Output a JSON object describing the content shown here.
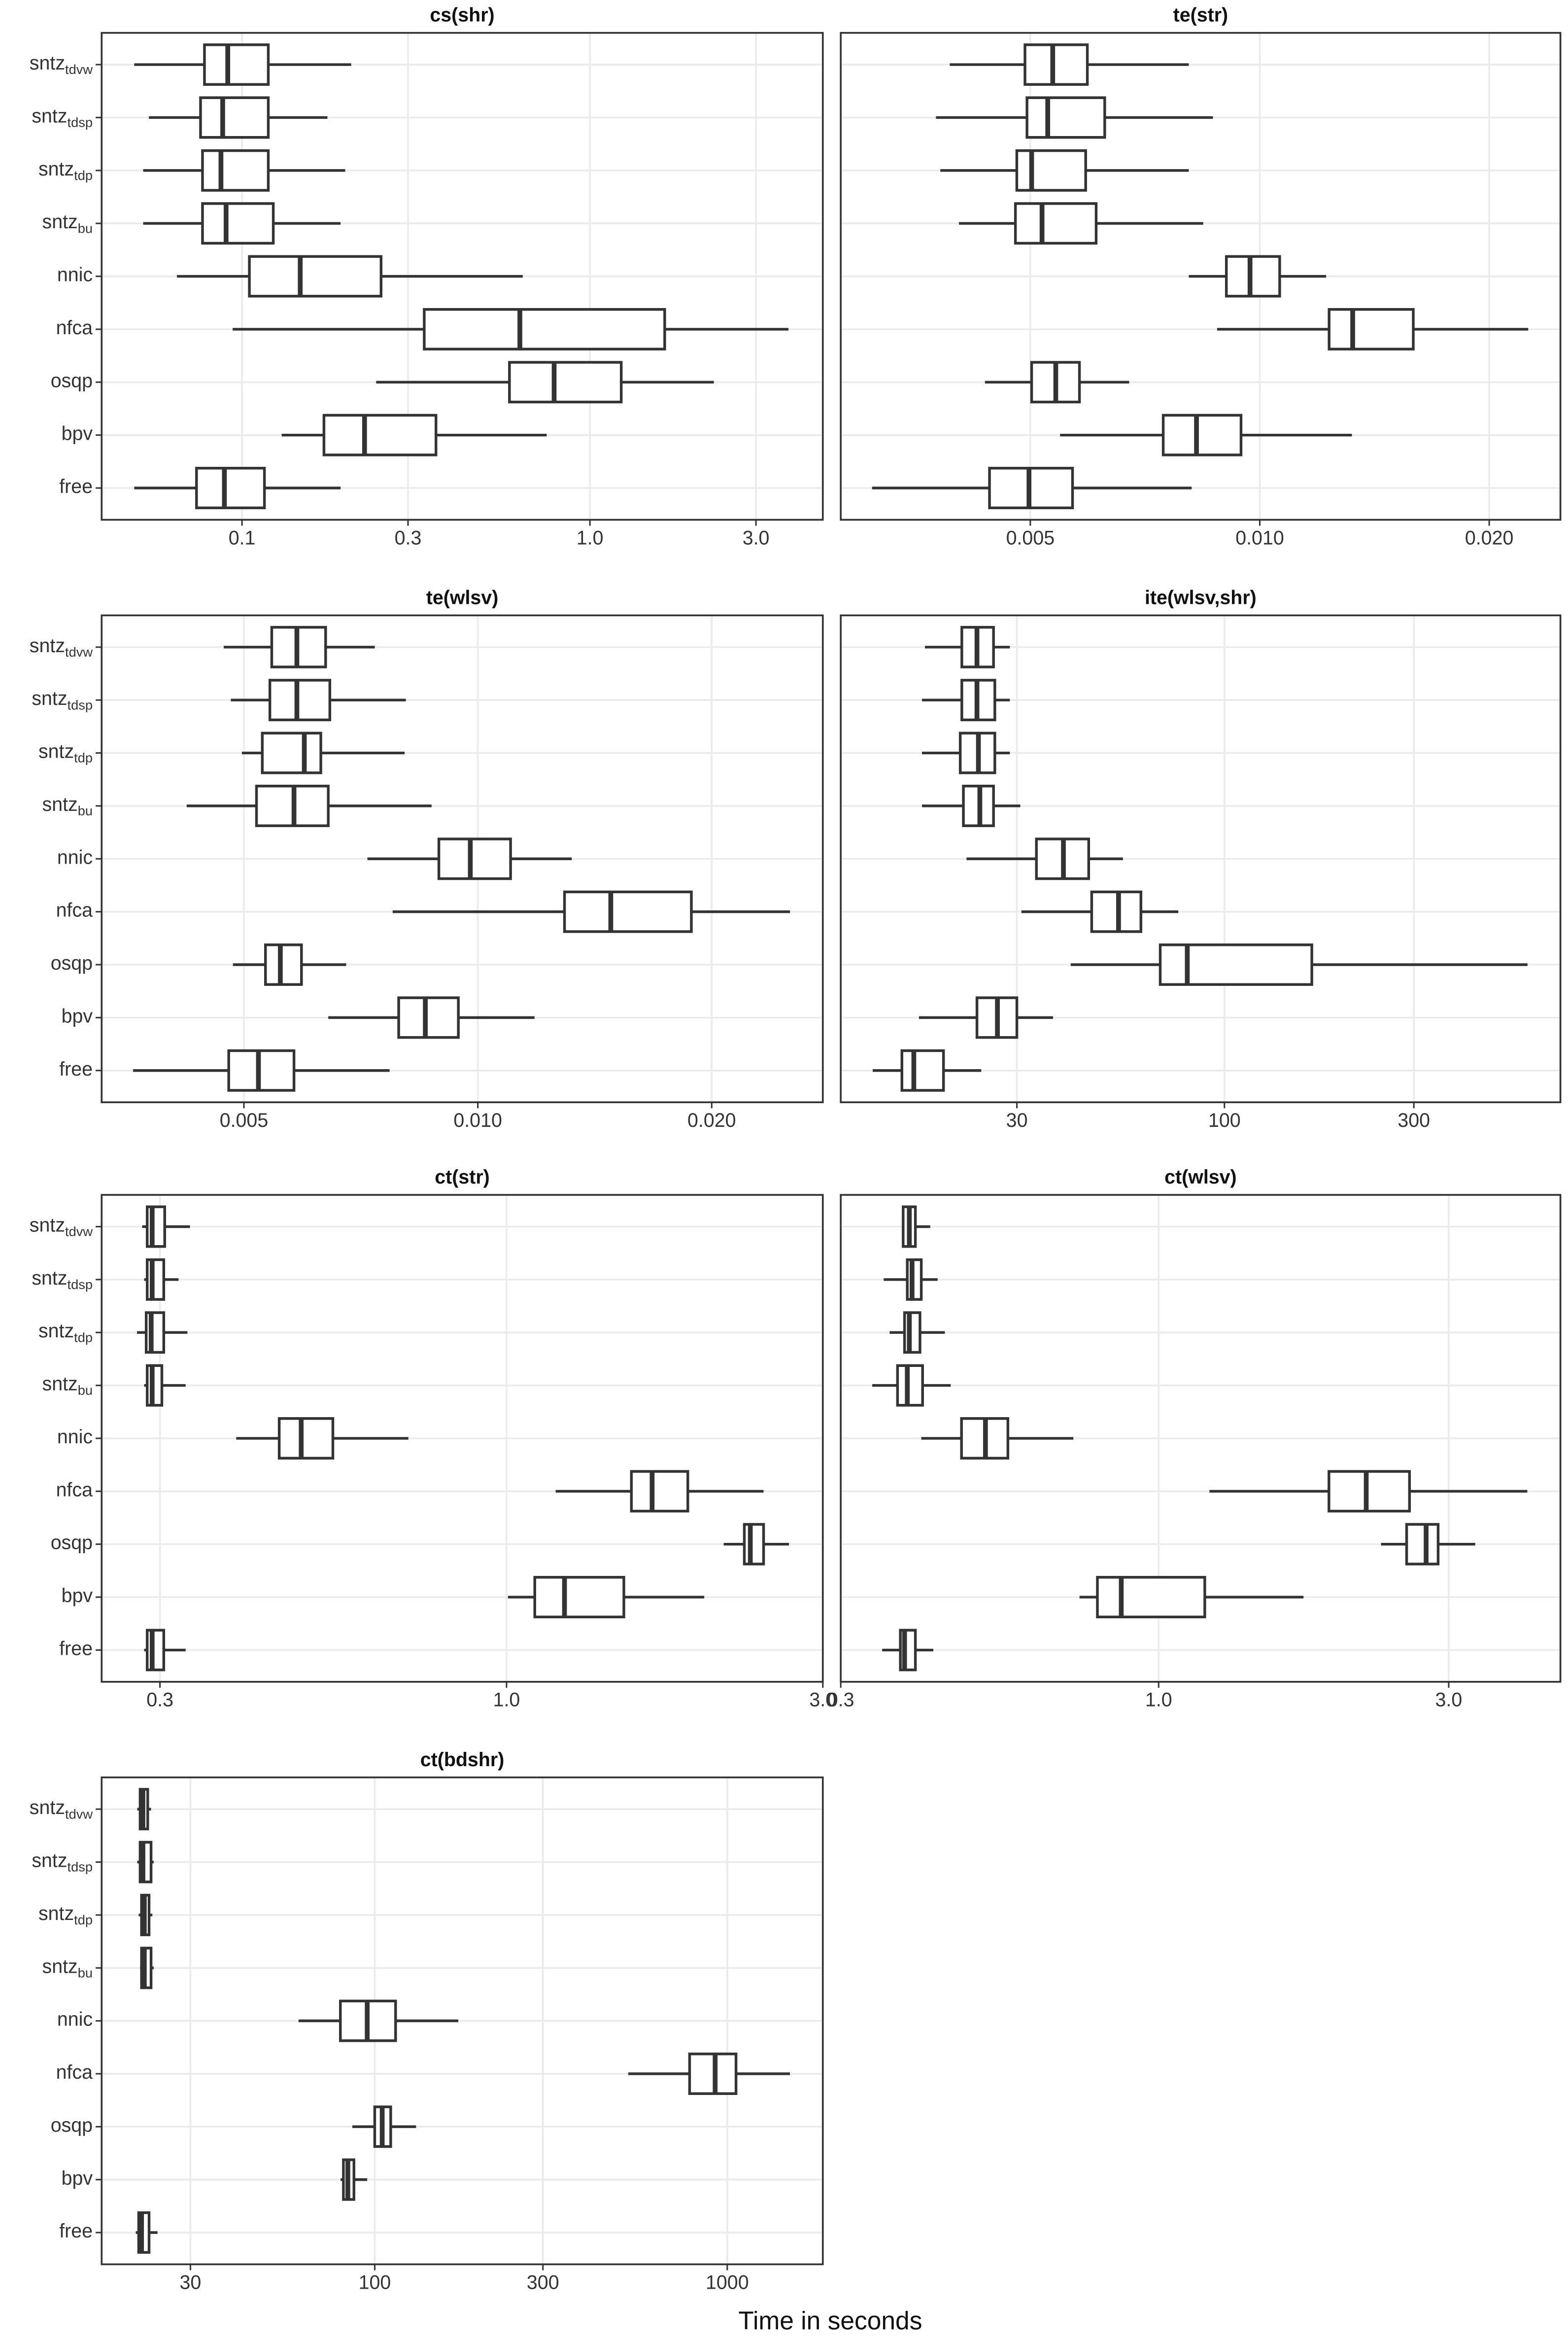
{
  "xlabel": "Time in seconds",
  "chart_data": [
    {
      "type": "box",
      "title": "cs(shr)",
      "categories": [
        {
          "text": "sntz",
          "sub": "tdvw"
        },
        {
          "text": "sntz",
          "sub": "tdsp"
        },
        {
          "text": "sntz",
          "sub": "tdp"
        },
        {
          "text": "sntz",
          "sub": "bu"
        },
        {
          "text": "nnic"
        },
        {
          "text": "nfca"
        },
        {
          "text": "osqp"
        },
        {
          "text": "bpv"
        },
        {
          "text": "free"
        }
      ],
      "values": [
        [
          0.049,
          0.078,
          0.091,
          0.119,
          0.206
        ],
        [
          0.054,
          0.076,
          0.088,
          0.119,
          0.176
        ],
        [
          0.052,
          0.077,
          0.087,
          0.119,
          0.198
        ],
        [
          0.052,
          0.077,
          0.09,
          0.123,
          0.192
        ],
        [
          0.065,
          0.105,
          0.147,
          0.251,
          0.641
        ],
        [
          0.094,
          0.334,
          0.629,
          1.64,
          3.72
        ],
        [
          0.243,
          0.587,
          0.789,
          1.23,
          2.27
        ],
        [
          0.13,
          0.172,
          0.225,
          0.361,
          0.751
        ],
        [
          0.049,
          0.074,
          0.089,
          0.116,
          0.192
        ]
      ],
      "xscale": "log",
      "xlim": [
        0.0395,
        4.67
      ],
      "xticks": [
        0.1,
        0.3,
        {
          "value": 1,
          "label": "1.0"
        },
        {
          "value": 3,
          "label": "3.0"
        }
      ],
      "grid": true
    },
    {
      "type": "box",
      "title": "te(str)",
      "values": [
        [
          0.00392,
          0.00492,
          0.00535,
          0.00594,
          0.00807
        ],
        [
          0.00376,
          0.00495,
          0.00527,
          0.00626,
          0.00868
        ],
        [
          0.00381,
          0.0048,
          0.00502,
          0.00591,
          0.00807
        ],
        [
          0.00403,
          0.00478,
          0.00518,
          0.0061,
          0.00843
        ],
        [
          0.00807,
          0.00904,
          0.00971,
          0.01062,
          0.01222
        ],
        [
          0.00879,
          0.01233,
          0.01324,
          0.0159,
          0.0225
        ],
        [
          0.00436,
          0.00502,
          0.0054,
          0.0058,
          0.00674
        ],
        [
          0.00547,
          0.00747,
          0.00826,
          0.00945,
          0.01321
        ],
        [
          0.0031,
          0.00442,
          0.00498,
          0.00568,
          0.00814
        ]
      ],
      "xscale": "log",
      "xlim": [
        0.00282,
        0.0248
      ],
      "xticks": [
        0.005,
        {
          "value": 0.01,
          "label": "0.010"
        },
        {
          "value": 0.02,
          "label": "0.020"
        }
      ],
      "grid": true
    },
    {
      "type": "box",
      "title": "te(wlsv)",
      "categories": [
        {
          "text": "sntz",
          "sub": "tdvw"
        },
        {
          "text": "sntz",
          "sub": "tdsp"
        },
        {
          "text": "sntz",
          "sub": "tdp"
        },
        {
          "text": "sntz",
          "sub": "bu"
        },
        {
          "text": "nnic"
        },
        {
          "text": "nfca"
        },
        {
          "text": "osqp"
        },
        {
          "text": "bpv"
        },
        {
          "text": "free"
        }
      ],
      "values": [
        [
          0.00471,
          0.00543,
          0.00585,
          0.00637,
          0.00737
        ],
        [
          0.00481,
          0.0054,
          0.00585,
          0.00645,
          0.00808
        ],
        [
          0.00497,
          0.00528,
          0.00598,
          0.00628,
          0.00805
        ],
        [
          0.00422,
          0.00519,
          0.0058,
          0.00642,
          0.00872
        ],
        [
          0.00721,
          0.00891,
          0.00978,
          0.01102,
          0.01321
        ],
        [
          0.00777,
          0.01293,
          0.01483,
          0.01883,
          0.02522
        ],
        [
          0.00484,
          0.00533,
          0.00557,
          0.00593,
          0.00677
        ],
        [
          0.00642,
          0.00791,
          0.00856,
          0.00944,
          0.01183
        ],
        [
          0.0036,
          0.00478,
          0.00522,
          0.0058,
          0.0077
        ]
      ],
      "xscale": "log",
      "xlim": [
        0.00328,
        0.0278
      ],
      "xticks": [
        0.005,
        {
          "value": 0.01,
          "label": "0.010"
        },
        {
          "value": 0.02,
          "label": "0.020"
        }
      ],
      "grid": true
    },
    {
      "type": "box",
      "title": "ite(wlsv,shr)",
      "values": [
        [
          17.6,
          21.8,
          23.8,
          26.2,
          28.8
        ],
        [
          17.3,
          21.8,
          23.8,
          26.4,
          28.8
        ],
        [
          17.3,
          21.6,
          24.0,
          26.4,
          28.8
        ],
        [
          17.3,
          22.0,
          24.2,
          26.2,
          30.6
        ],
        [
          22.4,
          33.6,
          39.3,
          45.5,
          55.5
        ],
        [
          30.8,
          46.3,
          54.1,
          61.6,
          76.5
        ],
        [
          41.0,
          68.9,
          80.6,
          166,
          580
        ],
        [
          17.0,
          23.8,
          26.8,
          30.0,
          37.0
        ],
        [
          13.0,
          15.4,
          16.5,
          19.6,
          24.4
        ]
      ],
      "xscale": "log",
      "xlim": [
        10.8,
        702
      ],
      "xticks": [
        30,
        100,
        300
      ],
      "grid": true
    },
    {
      "type": "box",
      "title": "ct(str)",
      "categories": [
        {
          "text": "sntz",
          "sub": "tdvw"
        },
        {
          "text": "sntz",
          "sub": "tdsp"
        },
        {
          "text": "sntz",
          "sub": "tdp"
        },
        {
          "text": "sntz",
          "sub": "bu"
        },
        {
          "text": "nnic"
        },
        {
          "text": "nfca"
        },
        {
          "text": "osqp"
        },
        {
          "text": "bpv"
        },
        {
          "text": "free"
        }
      ],
      "values": [
        [
          0.282,
          0.287,
          0.292,
          0.305,
          0.333
        ],
        [
          0.284,
          0.287,
          0.292,
          0.304,
          0.32
        ],
        [
          0.277,
          0.286,
          0.291,
          0.304,
          0.33
        ],
        [
          0.284,
          0.287,
          0.292,
          0.302,
          0.328
        ],
        [
          0.391,
          0.454,
          0.49,
          0.547,
          0.711
        ],
        [
          1.186,
          1.543,
          1.658,
          1.877,
          2.442
        ],
        [
          2.126,
          2.284,
          2.332,
          2.442,
          2.667
        ],
        [
          1.005,
          1.103,
          1.223,
          1.503,
          1.987
        ],
        [
          0.284,
          0.287,
          0.292,
          0.304,
          0.328
        ]
      ],
      "xscale": "log",
      "xlim": [
        0.245,
        3.0
      ],
      "xticks": [
        0.3,
        {
          "value": 1,
          "label": "1.0"
        },
        {
          "value": 3,
          "label": "3.0"
        }
      ],
      "grid": true
    },
    {
      "type": "box",
      "title": "ct(wlsv)",
      "values": [
        [
          0.378,
          0.38,
          0.389,
          0.398,
          0.421
        ],
        [
          0.353,
          0.386,
          0.393,
          0.407,
          0.433
        ],
        [
          0.361,
          0.382,
          0.389,
          0.405,
          0.445
        ],
        [
          0.338,
          0.372,
          0.386,
          0.409,
          0.455
        ],
        [
          0.407,
          0.474,
          0.519,
          0.565,
          0.724
        ],
        [
          1.212,
          1.906,
          2.195,
          2.586,
          4.04
        ],
        [
          2.322,
          2.558,
          2.754,
          2.882,
          3.317
        ],
        [
          0.741,
          0.793,
          0.868,
          1.191,
          1.731
        ],
        [
          0.351,
          0.376,
          0.382,
          0.398,
          0.426
        ]
      ],
      "xscale": "log",
      "xlim": [
        0.3,
        4.58
      ],
      "xticks": [
        0.3,
        {
          "value": 1,
          "label": "1.0"
        },
        {
          "value": 3,
          "label": "3.0"
        }
      ],
      "grid": true
    },
    {
      "type": "box",
      "title": "ct(bdshr)",
      "categories": [
        {
          "text": "sntz",
          "sub": "tdvw"
        },
        {
          "text": "sntz",
          "sub": "tdsp"
        },
        {
          "text": "sntz",
          "sub": "tdp"
        },
        {
          "text": "sntz",
          "sub": "bu"
        },
        {
          "text": "nnic"
        },
        {
          "text": "nfca"
        },
        {
          "text": "osqp"
        },
        {
          "text": "bpv"
        },
        {
          "text": "free"
        }
      ],
      "values": [
        [
          21.2,
          21.6,
          22.0,
          22.7,
          23.2
        ],
        [
          21.2,
          21.6,
          22.0,
          23.2,
          23.6
        ],
        [
          21.4,
          21.8,
          22.2,
          22.9,
          23.4
        ],
        [
          21.6,
          21.8,
          22.2,
          23.2,
          23.6
        ],
        [
          60.8,
          79.9,
          95.2,
          114.6,
          172.6
        ],
        [
          524,
          782,
          924,
          1059,
          1506
        ],
        [
          86.4,
          100,
          105,
          111,
          131
        ],
        [
          80,
          81.5,
          83.9,
          87.3,
          95.2
        ],
        [
          21.0,
          21.4,
          21.8,
          22.9,
          24.2
        ]
      ],
      "xscale": "log",
      "xlim": [
        16.8,
        1867
      ],
      "xticks": [
        30,
        100,
        300,
        1000
      ],
      "grid": true
    }
  ]
}
